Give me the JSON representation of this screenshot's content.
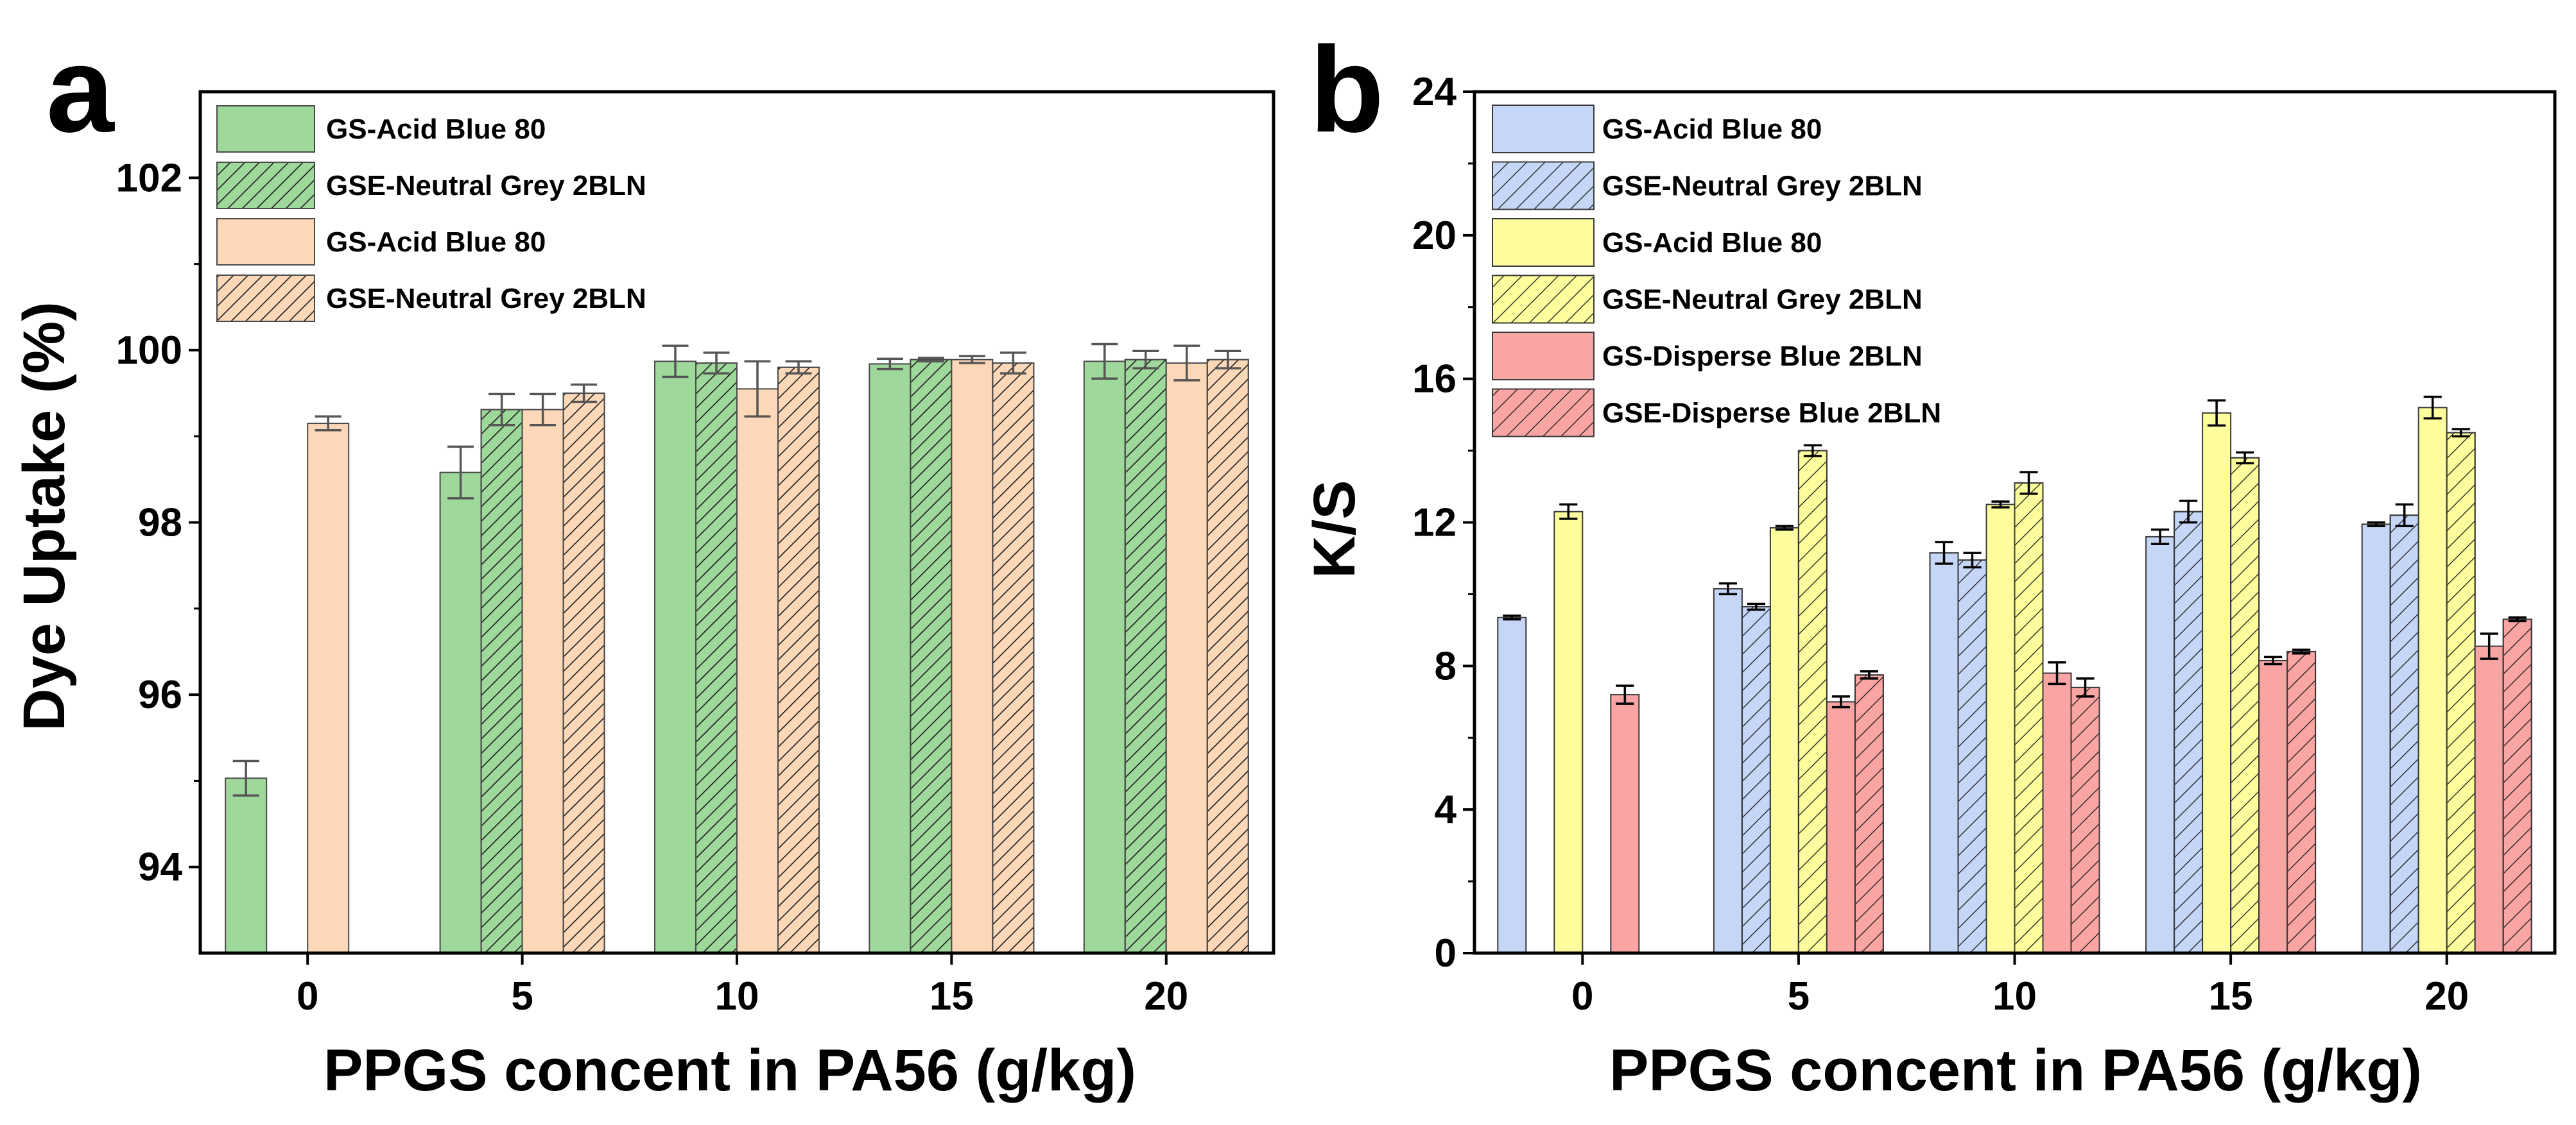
{
  "chart_data": [
    {
      "panel": "a",
      "type": "bar",
      "xlabel": "PPGS concent in PA56 (g/kg)",
      "ylabel": "Dye Uptake (%)",
      "categories": [
        "0",
        "5",
        "10",
        "15",
        "20"
      ],
      "ylim": [
        93,
        103
      ],
      "yticks": [
        94,
        96,
        98,
        100,
        102
      ],
      "legend_position": "top-left",
      "series": [
        {
          "name": "GS-Acid Blue 80",
          "fill": "#9ed89a",
          "hatch": false,
          "values": [
            95.03,
            98.58,
            99.87,
            99.84,
            99.87
          ],
          "errors": [
            0.2,
            0.3,
            0.18,
            0.06,
            0.2
          ]
        },
        {
          "name": "GSE-Neutral Grey 2BLN",
          "fill": "#9ed89a",
          "hatch": true,
          "values": [
            null,
            99.31,
            99.85,
            99.89,
            99.89
          ],
          "errors": [
            null,
            0.18,
            0.12,
            0.02,
            0.1
          ]
        },
        {
          "name": "GS-Acid Blue 80",
          "fill": "#fcd7b8",
          "hatch": false,
          "values": [
            99.15,
            99.31,
            99.55,
            99.89,
            99.85
          ],
          "errors": [
            0.08,
            0.18,
            0.32,
            0.04,
            0.2
          ]
        },
        {
          "name": "GSE-Neutral Grey 2BLN",
          "fill": "#fcd7b8",
          "hatch": true,
          "values": [
            null,
            99.5,
            99.8,
            99.85,
            99.89
          ],
          "errors": [
            null,
            0.1,
            0.07,
            0.12,
            0.1
          ]
        }
      ]
    },
    {
      "panel": "b",
      "type": "bar",
      "xlabel": "PPGS concent in PA56 (g/kg)",
      "ylabel": "K/S",
      "categories": [
        "0",
        "5",
        "10",
        "15",
        "20"
      ],
      "ylim": [
        0,
        24
      ],
      "yticks": [
        0,
        4,
        8,
        12,
        16,
        20,
        24
      ],
      "legend_position": "top-left",
      "series": [
        {
          "name": "GS-Acid Blue 80",
          "fill": "#c5d6f6",
          "hatch": false,
          "values": [
            9.35,
            10.15,
            11.15,
            11.6,
            11.95
          ],
          "errors": [
            0.05,
            0.15,
            0.3,
            0.2,
            0.05
          ]
        },
        {
          "name": "GSE-Neutral Grey 2BLN",
          "fill": "#c5d6f6",
          "hatch": true,
          "values": [
            null,
            9.65,
            10.95,
            12.3,
            12.2
          ],
          "errors": [
            null,
            0.08,
            0.2,
            0.3,
            0.3
          ]
        },
        {
          "name": "GS-Acid Blue 80",
          "fill": "#fdfd9e",
          "hatch": false,
          "values": [
            12.3,
            11.85,
            12.5,
            15.05,
            15.2
          ],
          "errors": [
            0.2,
            0.05,
            0.08,
            0.35,
            0.3
          ]
        },
        {
          "name": "GSE-Neutral Grey 2BLN",
          "fill": "#fdfd9e",
          "hatch": true,
          "values": [
            null,
            14.0,
            13.1,
            13.8,
            14.5
          ],
          "errors": [
            null,
            0.15,
            0.3,
            0.15,
            0.1
          ]
        },
        {
          "name": "GS-Disperse Blue 2BLN",
          "fill": "#f8a5a4",
          "hatch": false,
          "values": [
            7.2,
            7.0,
            7.8,
            8.15,
            8.55
          ],
          "errors": [
            0.25,
            0.15,
            0.3,
            0.1,
            0.35
          ]
        },
        {
          "name": "GSE-Disperse Blue 2BLN",
          "fill": "#f8a5a4",
          "hatch": true,
          "values": [
            null,
            7.75,
            7.4,
            8.4,
            9.3
          ],
          "errors": [
            null,
            0.1,
            0.25,
            0.05,
            0.05
          ]
        }
      ]
    }
  ]
}
